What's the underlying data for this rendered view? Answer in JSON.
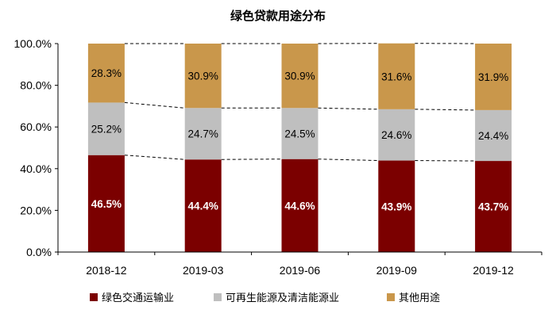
{
  "chart_data": {
    "type": "bar",
    "stacked": true,
    "title": "绿色贷款用途分布",
    "categories": [
      "2018-12",
      "2019-03",
      "2019-06",
      "2019-09",
      "2019-12"
    ],
    "series": [
      {
        "name": "绿色交通运输业",
        "color": "#7b0000",
        "label_color": "#ffffff",
        "values": [
          46.5,
          44.4,
          44.6,
          43.9,
          43.7
        ],
        "labels": [
          "46.5%",
          "44.4%",
          "44.6%",
          "43.9%",
          "43.7%"
        ]
      },
      {
        "name": "可再生能源及清洁能源业",
        "color": "#bfbfbf",
        "label_color": "#000000",
        "values": [
          25.2,
          24.7,
          24.5,
          24.6,
          24.4
        ],
        "labels": [
          "25.2%",
          "24.7%",
          "24.5%",
          "24.6%",
          "24.4%"
        ]
      },
      {
        "name": "其他用途",
        "color": "#c9974b",
        "label_color": "#000000",
        "values": [
          28.3,
          30.9,
          30.9,
          31.6,
          31.9
        ],
        "labels": [
          "28.3%",
          "30.9%",
          "30.9%",
          "31.6%",
          "31.9%"
        ]
      }
    ],
    "ylim": [
      0,
      100
    ],
    "yticks": [
      "0.0%",
      "20.0%",
      "40.0%",
      "60.0%",
      "80.0%",
      "100.0%"
    ],
    "legend_position": "bottom",
    "grid": false
  }
}
